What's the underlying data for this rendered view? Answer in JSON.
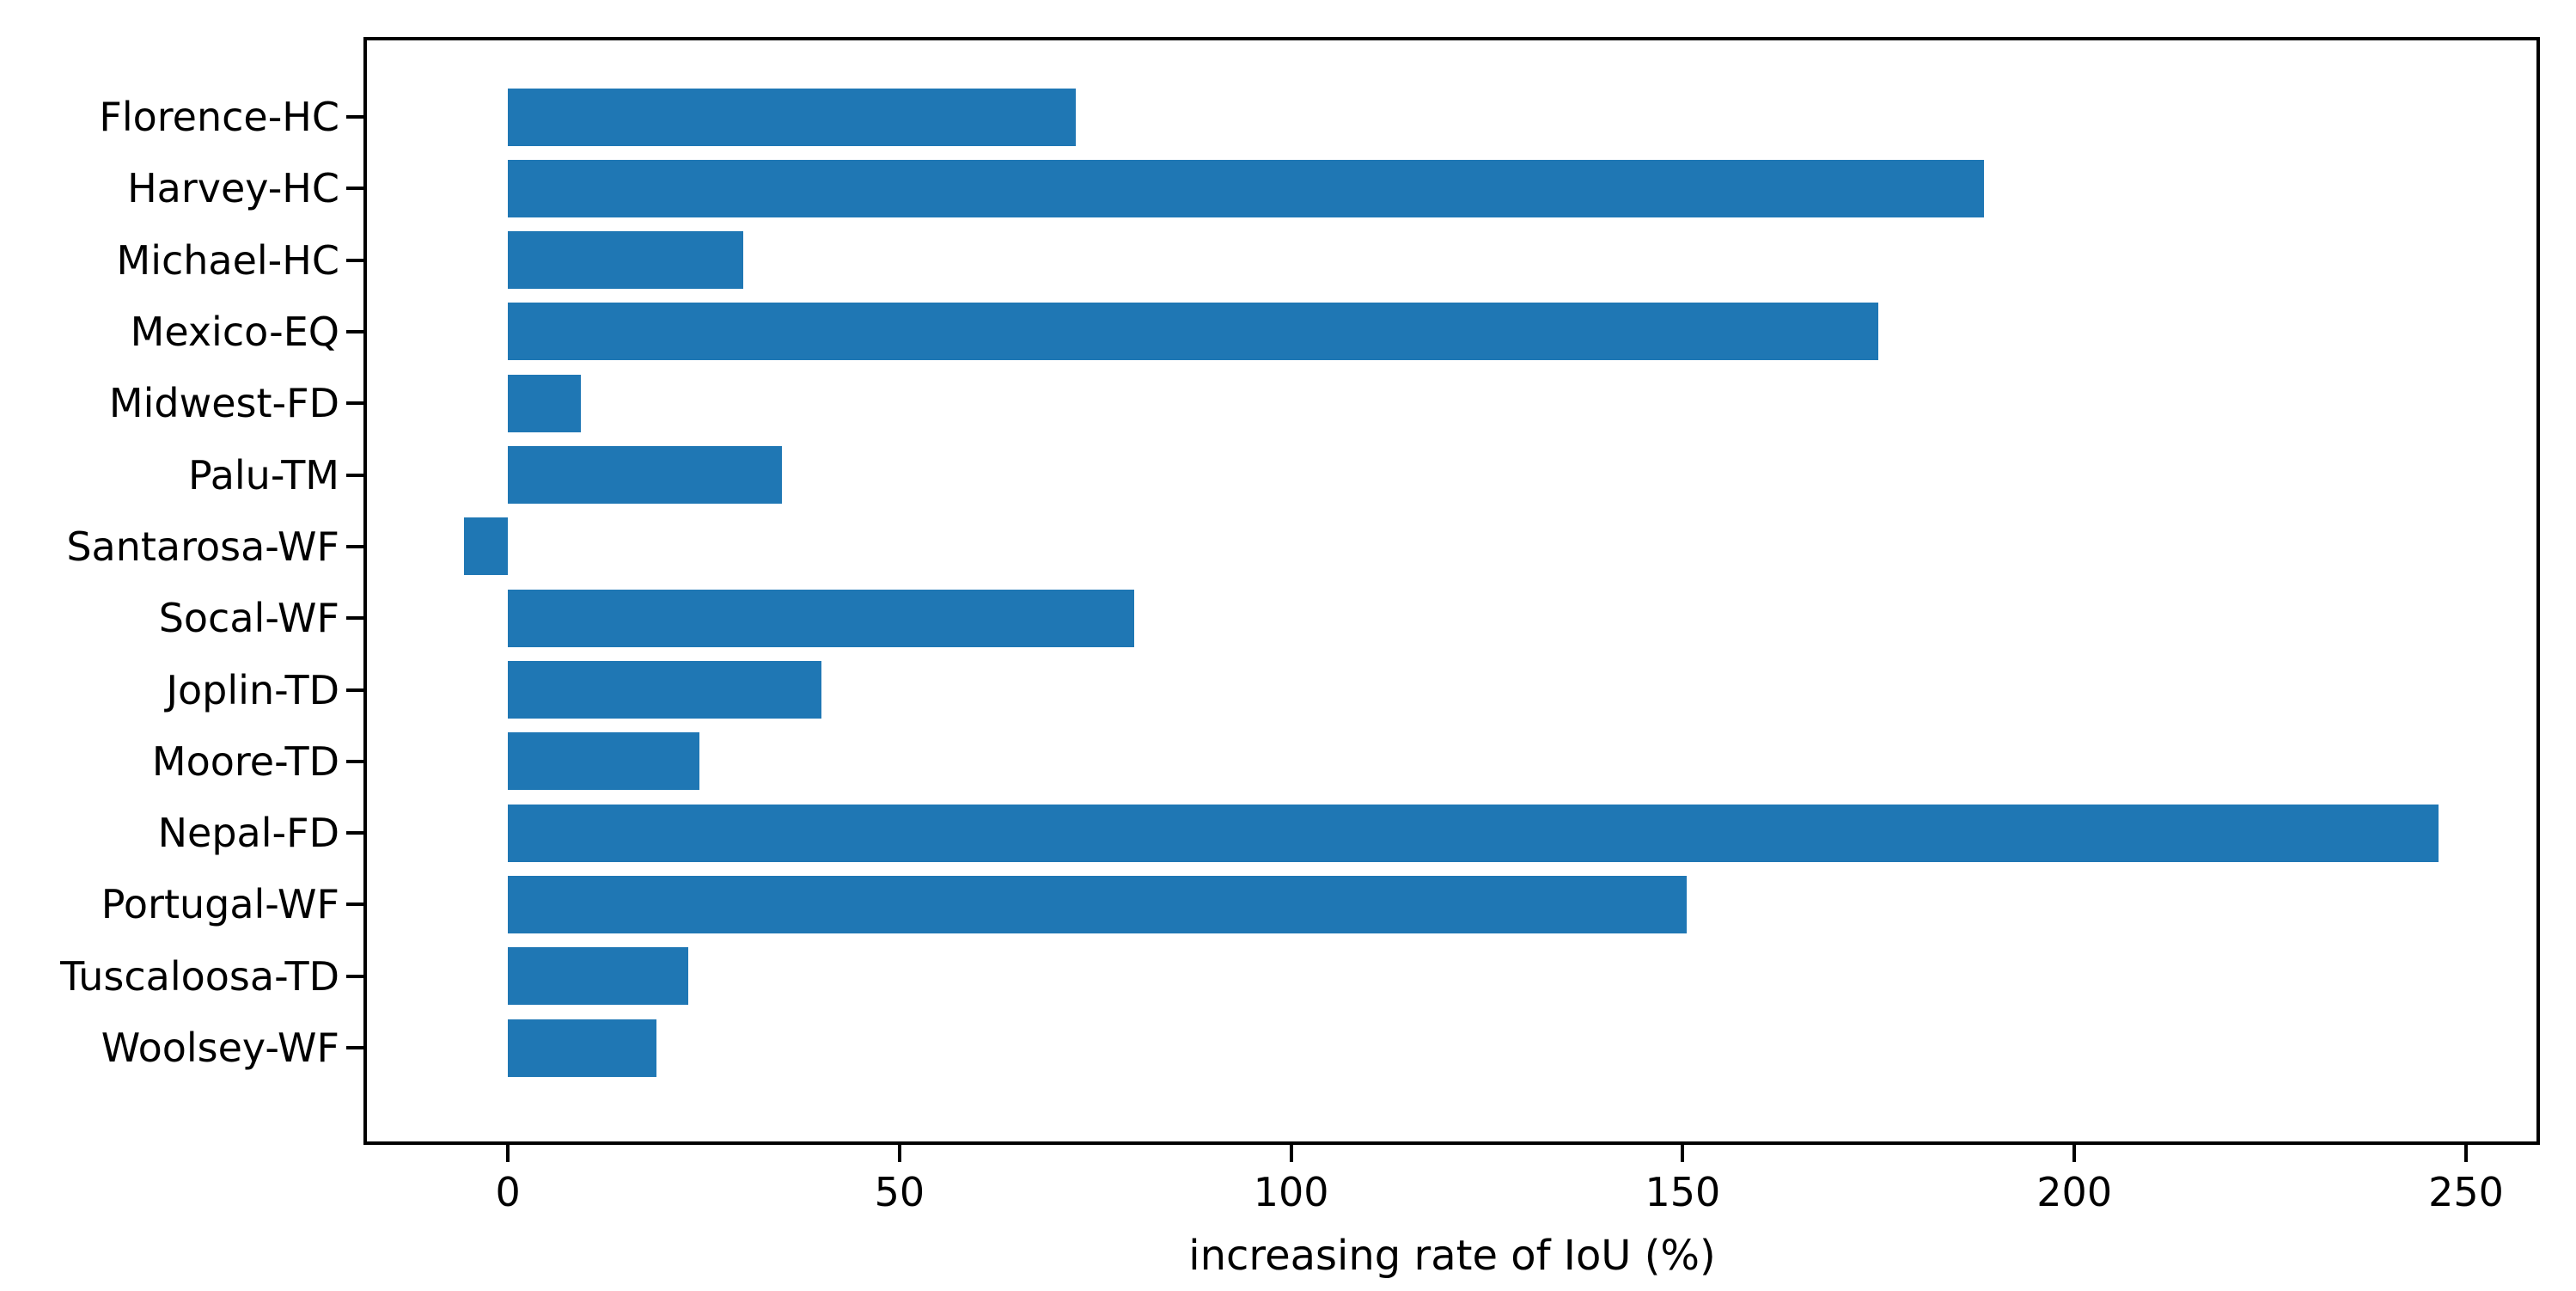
{
  "figure": {
    "background_color": "#ffffff",
    "frame_color": "#000000",
    "text_color": "#000000"
  },
  "chart_data": {
    "type": "bar",
    "orientation": "horizontal",
    "xlabel": "increasing rate of IoU (%)",
    "categories": [
      "Florence-HC",
      "Harvey-HC",
      "Michael-HC",
      "Mexico-EQ",
      "Midwest-FD",
      "Palu-TM",
      "Santarosa-WF",
      "Socal-WF",
      "Joplin-TD",
      "Moore-TD",
      "Nepal-FD",
      "Portugal-WF",
      "Tuscaloosa-TD",
      "Woolsey-WF"
    ],
    "values": [
      72.5,
      188.5,
      30,
      175,
      9.3,
      35,
      -5.6,
      80,
      40,
      24.5,
      246.5,
      150.5,
      23,
      19
    ],
    "x_ticks": [
      0,
      50,
      100,
      150,
      200,
      250
    ],
    "xlim": [
      -18,
      259
    ],
    "bar_color": "#1f77b4",
    "bar_relative_height": 0.8,
    "grid": false,
    "legend_position": "none"
  }
}
